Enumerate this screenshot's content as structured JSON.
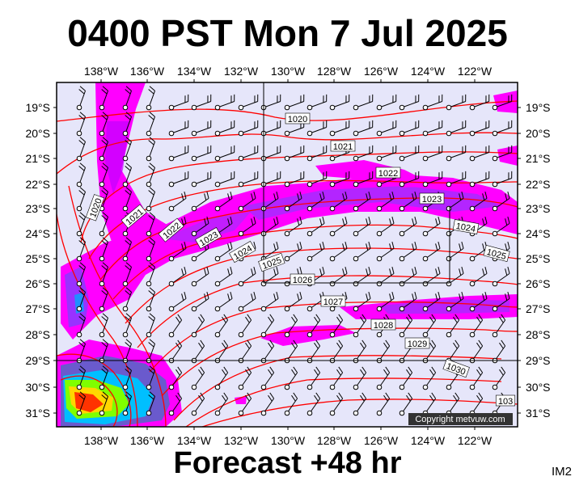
{
  "header": {
    "title": "0400 PST Mon 7 Jul 2025"
  },
  "footer": {
    "forecast": "Forecast +48 hr",
    "code": "IM2"
  },
  "map": {
    "copyright": "Copyright metvuw.com",
    "lon_labels": [
      "138°W",
      "136°W",
      "134°W",
      "132°W",
      "130°W",
      "128°W",
      "126°W",
      "124°W",
      "122°W"
    ],
    "lat_labels": [
      "19°S",
      "20°S",
      "21°S",
      "22°S",
      "23°S",
      "24°S",
      "25°S",
      "26°S",
      "27°S",
      "28°S",
      "29°S",
      "30°S",
      "31°S"
    ],
    "isobar_labels": [
      "1020",
      "1020",
      "1021",
      "1021",
      "1022",
      "1022",
      "1023",
      "1023",
      "1024",
      "1024",
      "1025",
      "1025",
      "1026",
      "1027",
      "1028",
      "1029",
      "1030",
      "103"
    ],
    "colors": {
      "background": "#e6e6fa",
      "isobar": "#ff0000",
      "rain_light": "#ff00ff",
      "rain_moderate": "#9932ff",
      "rain_heavy": "#ff3300"
    }
  }
}
